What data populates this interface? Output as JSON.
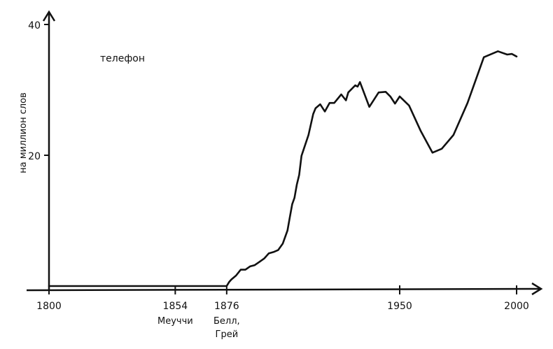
{
  "chart_data": {
    "type": "line",
    "title": "",
    "xlabel": "",
    "ylabel": "на миллион слов",
    "xlim": [
      1800,
      2010
    ],
    "ylim": [
      0,
      42
    ],
    "grid": false,
    "x_ticks": [
      1800,
      1854,
      1876,
      1950,
      2000
    ],
    "y_ticks": [
      20,
      40
    ],
    "annotations": [
      {
        "x": 1854,
        "text": "Меуччи"
      },
      {
        "x": 1876,
        "text": "Белл,",
        "text2": "Грей"
      }
    ],
    "series": [
      {
        "name": "телефон",
        "color": "#111111",
        "x": [
          1800,
          1876,
          1877,
          1878,
          1880,
          1882,
          1884,
          1886,
          1888,
          1890,
          1892,
          1894,
          1896,
          1898,
          1900,
          1902,
          1903,
          1904,
          1905,
          1906,
          1907,
          1908,
          1909,
          1911,
          1913,
          1914,
          1916,
          1918,
          1920,
          1922,
          1925,
          1927,
          1928,
          1931,
          1932,
          1933,
          1937,
          1941,
          1944,
          1946,
          1948,
          1950,
          1954,
          1959,
          1964,
          1968,
          1973,
          1979,
          1986,
          1992,
          1996,
          1998,
          2000
        ],
        "y": [
          0,
          0,
          0.6,
          1,
          1.6,
          2.5,
          2.5,
          3,
          3.2,
          3.7,
          4.2,
          5,
          5.2,
          5.5,
          6.5,
          8.5,
          10.5,
          12.5,
          13.5,
          15.5,
          17,
          19.9,
          21,
          23.1,
          26.3,
          27.2,
          27.8,
          26.7,
          28,
          28,
          29.3,
          28.4,
          29.6,
          30.7,
          30.5,
          31.2,
          27.4,
          29.6,
          29.7,
          29,
          27.9,
          29,
          27.6,
          23.7,
          20.4,
          21,
          23.1,
          28,
          35,
          35.9,
          35.4,
          35.5,
          35.1
        ]
      }
    ]
  }
}
